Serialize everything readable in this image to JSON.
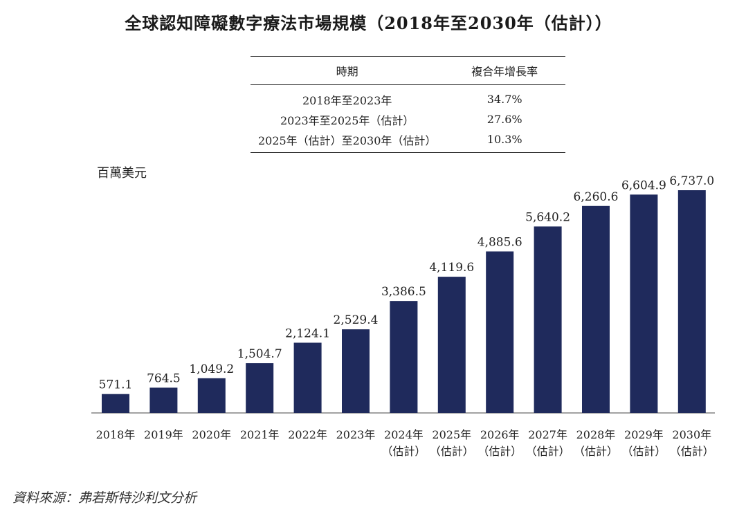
{
  "title": "全球認知障礙數字療法市場規模（2018年至2030年（估計））",
  "cagr_table": {
    "headers": [
      "時期",
      "複合年增長率"
    ],
    "rows": [
      {
        "period": "2018年至2023年",
        "rate": "34.7%"
      },
      {
        "period": "2023年至2025年（估計）",
        "rate": "27.6%"
      },
      {
        "period": "2025年（估計）至2030年（估計）",
        "rate": "10.3%"
      }
    ]
  },
  "source": "資料來源：弗若斯特沙利文分析",
  "chart_data": {
    "type": "bar",
    "ylabel": "百萬美元",
    "categories": [
      [
        "2018年"
      ],
      [
        "2019年"
      ],
      [
        "2020年"
      ],
      [
        "2021年"
      ],
      [
        "2022年"
      ],
      [
        "2023年"
      ],
      [
        "2024年",
        "（估計）"
      ],
      [
        "2025年",
        "（估計）"
      ],
      [
        "2026年",
        "（估計）"
      ],
      [
        "2027年",
        "（估計）"
      ],
      [
        "2028年",
        "（估計）"
      ],
      [
        "2029年",
        "（估計）"
      ],
      [
        "2030年",
        "（估計）"
      ]
    ],
    "values": [
      571.1,
      764.5,
      1049.2,
      1504.7,
      2124.1,
      2529.4,
      3386.5,
      4119.6,
      4885.6,
      5640.2,
      6260.6,
      6604.9,
      6737.0
    ],
    "value_labels": [
      "571.1",
      "764.5",
      "1,049.2",
      "1,504.7",
      "2,124.1",
      "2,529.4",
      "3,386.5",
      "4,119.6",
      "4,885.6",
      "5,640.2",
      "6,260.6",
      "6,604.9",
      "6,737.0"
    ],
    "bar_color": "#1f2a5c",
    "grid": false,
    "legend": "none"
  }
}
